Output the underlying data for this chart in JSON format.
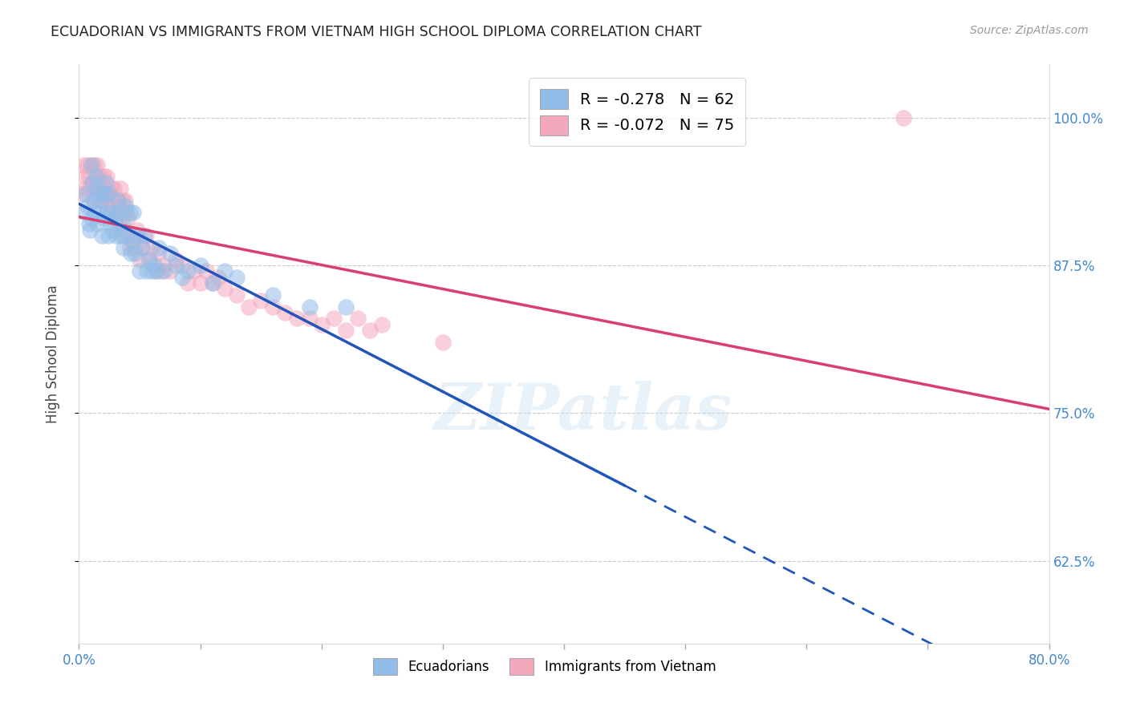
{
  "title": "ECUADORIAN VS IMMIGRANTS FROM VIETNAM HIGH SCHOOL DIPLOMA CORRELATION CHART",
  "source": "Source: ZipAtlas.com",
  "ylabel": "High School Diploma",
  "ytick_labels": [
    "62.5%",
    "75.0%",
    "87.5%",
    "100.0%"
  ],
  "ytick_values": [
    0.625,
    0.75,
    0.875,
    1.0
  ],
  "xlim": [
    0.0,
    0.8
  ],
  "ylim": [
    0.555,
    1.045
  ],
  "legend_blue": "R = -0.278   N = 62",
  "legend_pink": "R = -0.072   N = 75",
  "legend_label_blue": "Ecuadorians",
  "legend_label_pink": "Immigrants from Vietnam",
  "watermark": "ZIPatlas",
  "blue_color": "#92BDE8",
  "pink_color": "#F4A8BC",
  "blue_line_color": "#2255BB",
  "pink_line_color": "#D94070",
  "blue_x": [
    0.005,
    0.006,
    0.007,
    0.008,
    0.009,
    0.01,
    0.01,
    0.011,
    0.012,
    0.013,
    0.014,
    0.015,
    0.015,
    0.016,
    0.017,
    0.018,
    0.019,
    0.02,
    0.021,
    0.022,
    0.023,
    0.024,
    0.025,
    0.026,
    0.027,
    0.028,
    0.03,
    0.031,
    0.032,
    0.033,
    0.035,
    0.036,
    0.037,
    0.038,
    0.04,
    0.042,
    0.043,
    0.044,
    0.045,
    0.046,
    0.048,
    0.05,
    0.052,
    0.054,
    0.056,
    0.058,
    0.06,
    0.062,
    0.064,
    0.066,
    0.07,
    0.075,
    0.08,
    0.085,
    0.09,
    0.1,
    0.11,
    0.12,
    0.13,
    0.16,
    0.19,
    0.22
  ],
  "blue_y": [
    0.92,
    0.935,
    0.925,
    0.91,
    0.905,
    0.96,
    0.915,
    0.945,
    0.93,
    0.92,
    0.95,
    0.91,
    0.94,
    0.935,
    0.92,
    0.93,
    0.9,
    0.915,
    0.935,
    0.945,
    0.92,
    0.9,
    0.935,
    0.91,
    0.92,
    0.905,
    0.915,
    0.9,
    0.93,
    0.92,
    0.9,
    0.91,
    0.89,
    0.925,
    0.9,
    0.92,
    0.885,
    0.895,
    0.92,
    0.885,
    0.9,
    0.87,
    0.89,
    0.9,
    0.87,
    0.88,
    0.87,
    0.875,
    0.87,
    0.89,
    0.87,
    0.885,
    0.875,
    0.865,
    0.87,
    0.875,
    0.86,
    0.87,
    0.865,
    0.85,
    0.84,
    0.84
  ],
  "pink_x": [
    0.003,
    0.004,
    0.005,
    0.006,
    0.007,
    0.008,
    0.009,
    0.01,
    0.011,
    0.012,
    0.013,
    0.014,
    0.015,
    0.016,
    0.017,
    0.018,
    0.019,
    0.02,
    0.021,
    0.022,
    0.023,
    0.024,
    0.025,
    0.026,
    0.027,
    0.028,
    0.029,
    0.03,
    0.032,
    0.033,
    0.034,
    0.035,
    0.036,
    0.037,
    0.038,
    0.039,
    0.04,
    0.042,
    0.044,
    0.046,
    0.048,
    0.05,
    0.052,
    0.055,
    0.058,
    0.06,
    0.063,
    0.065,
    0.068,
    0.07,
    0.075,
    0.08,
    0.085,
    0.09,
    0.095,
    0.1,
    0.105,
    0.11,
    0.115,
    0.12,
    0.13,
    0.14,
    0.15,
    0.16,
    0.17,
    0.18,
    0.19,
    0.2,
    0.21,
    0.22,
    0.23,
    0.24,
    0.25,
    0.3,
    0.68
  ],
  "pink_y": [
    0.935,
    0.96,
    0.94,
    0.95,
    0.96,
    0.95,
    0.94,
    0.96,
    0.945,
    0.93,
    0.96,
    0.945,
    0.96,
    0.94,
    0.95,
    0.93,
    0.94,
    0.95,
    0.935,
    0.93,
    0.95,
    0.93,
    0.935,
    0.92,
    0.94,
    0.93,
    0.94,
    0.92,
    0.93,
    0.91,
    0.94,
    0.92,
    0.93,
    0.9,
    0.93,
    0.92,
    0.915,
    0.89,
    0.9,
    0.89,
    0.905,
    0.88,
    0.89,
    0.9,
    0.88,
    0.89,
    0.87,
    0.885,
    0.87,
    0.875,
    0.87,
    0.88,
    0.875,
    0.86,
    0.87,
    0.86,
    0.87,
    0.86,
    0.865,
    0.855,
    0.85,
    0.84,
    0.845,
    0.84,
    0.835,
    0.83,
    0.83,
    0.825,
    0.83,
    0.82,
    0.83,
    0.82,
    0.825,
    0.81,
    1.0
  ]
}
